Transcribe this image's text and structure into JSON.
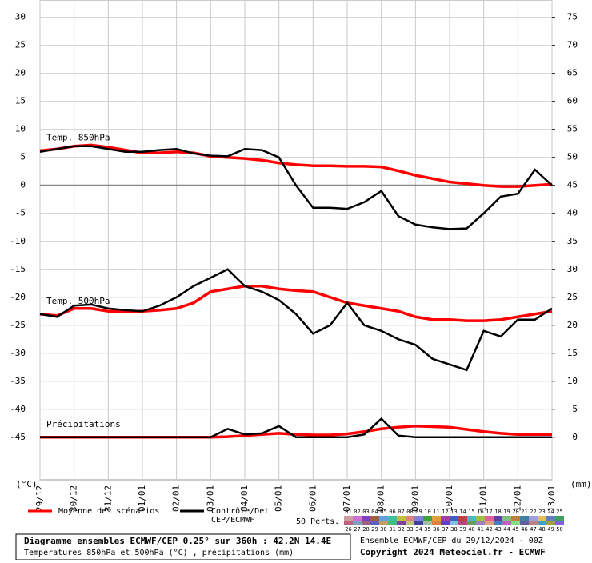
{
  "chart_data": {
    "type": "line",
    "title": "Diagramme ensembles ECMWF/CEP 0.25° sur 360h : 42.2N 14.4E",
    "subtitle": "Températures 850hPa et 500hPa (°C) , précipitations (mm)",
    "run": "Ensemble ECMWF/CEP du 29/12/2024 - 00Z",
    "copyright": "Copyright 2024 Meteociel.fr - ECMWF",
    "ylabel": "(°C)",
    "y2label": "(mm)",
    "x": [
      0,
      12,
      24,
      36,
      48,
      60,
      72,
      84,
      96,
      108,
      120,
      132,
      144,
      156,
      168,
      180,
      192,
      204,
      216,
      228,
      240,
      252,
      264,
      276,
      288,
      300,
      312,
      324,
      336,
      348,
      360
    ],
    "xlim": [
      0,
      360
    ],
    "xticks": [
      {
        "value": 0,
        "label": "29/12"
      },
      {
        "value": 24,
        "label": "30/12"
      },
      {
        "value": 48,
        "label": "31/12"
      },
      {
        "value": 72,
        "label": "01/01"
      },
      {
        "value": 96,
        "label": "02/01"
      },
      {
        "value": 120,
        "label": "03/01"
      },
      {
        "value": 144,
        "label": "04/01"
      },
      {
        "value": 168,
        "label": "05/01"
      },
      {
        "value": 192,
        "label": "06/01"
      },
      {
        "value": 216,
        "label": "07/01"
      },
      {
        "value": 240,
        "label": "08/01"
      },
      {
        "value": 264,
        "label": "09/01"
      },
      {
        "value": 288,
        "label": "10/01"
      },
      {
        "value": 312,
        "label": "11/01"
      },
      {
        "value": 336,
        "label": "12/01"
      },
      {
        "value": 360,
        "label": "13/01"
      }
    ],
    "ylim": [
      -52.6,
      33.1
    ],
    "yticks": [
      30,
      25,
      20,
      15,
      10,
      5,
      0,
      -5,
      -10,
      -15,
      -20,
      -25,
      -30,
      -35,
      -40,
      -45
    ],
    "y2lim": [
      -7.6,
      78.1
    ],
    "y2ticks": [
      75,
      70,
      65,
      60,
      55,
      50,
      45,
      40,
      35,
      30,
      25,
      20,
      15,
      10,
      5,
      0
    ],
    "grid": true,
    "legend": {
      "mean": {
        "name": "Moyenne des scénarios",
        "color": "#ff0000"
      },
      "control": {
        "name": [
          "Contrôle/Det",
          "CEP/ECMWF"
        ],
        "color": "#000000"
      }
    },
    "groups": [
      {
        "label": "Temp. 850hPa",
        "axis": "y",
        "mean": [
          6.2,
          6.5,
          7,
          7.2,
          6.8,
          6.3,
          5.8,
          5.8,
          6,
          5.8,
          5.2,
          5,
          4.8,
          4.5,
          4,
          3.7,
          3.5,
          3.5,
          3.4,
          3.4,
          3.3,
          2.6,
          1.8,
          1.2,
          0.6,
          0.3,
          0,
          -0.2,
          -0.2,
          0,
          0.2
        ],
        "control": [
          6,
          6.5,
          7,
          7,
          6.5,
          6,
          6,
          6.3,
          6.5,
          5.7,
          5.3,
          5.2,
          6.5,
          6.3,
          5,
          0,
          -4,
          -4,
          -4.2,
          -3,
          -1,
          -5.5,
          -7,
          -7.5,
          -7.8,
          -7.7,
          -5,
          -2,
          -1.5,
          2.8,
          0
        ]
      },
      {
        "label": "Temp. 500hPa",
        "axis": "y",
        "mean": [
          -23,
          -23.3,
          -22,
          -22,
          -22.5,
          -22.5,
          -22.5,
          -22.3,
          -22,
          -21,
          -19,
          -18.5,
          -18,
          -18,
          -18.5,
          -18.8,
          -19,
          -20,
          -21,
          -21.5,
          -22,
          -22.5,
          -23.5,
          -24,
          -24,
          -24.2,
          -24.2,
          -24,
          -23.5,
          -23,
          -22.5
        ],
        "control": [
          -23,
          -23.5,
          -21.5,
          -21.3,
          -22,
          -22.3,
          -22.5,
          -21.5,
          -20,
          -18,
          -16.5,
          -15,
          -18,
          -19,
          -20.5,
          -23,
          -26.5,
          -25,
          -21,
          -25,
          -26,
          -27.5,
          -28.5,
          -31,
          -32,
          -33,
          -26,
          -27,
          -24,
          -24,
          -22
        ]
      },
      {
        "label": "Précipitations",
        "axis": "y2",
        "mean": [
          0,
          0,
          0,
          0,
          0,
          0,
          0,
          0,
          0,
          0,
          0,
          0.1,
          0.3,
          0.5,
          0.7,
          0.5,
          0.4,
          0.4,
          0.6,
          1,
          1.5,
          1.8,
          2,
          1.9,
          1.8,
          1.4,
          1,
          0.7,
          0.5,
          0.5,
          0.5
        ],
        "control": [
          0,
          0,
          0,
          0,
          0,
          0,
          0,
          0,
          0,
          0,
          0,
          1.5,
          0.5,
          0.7,
          2,
          0,
          0,
          0,
          0,
          0.5,
          3.3,
          0.3,
          0,
          0,
          0,
          0,
          0,
          0,
          0,
          0,
          0
        ]
      }
    ],
    "members_label": "50 Perts.",
    "members": [
      "01",
      "02",
      "03",
      "04",
      "05",
      "06",
      "07",
      "08",
      "09",
      "10",
      "11",
      "12",
      "13",
      "14",
      "15",
      "16",
      "17",
      "18",
      "19",
      "20",
      "21",
      "22",
      "23",
      "24",
      "25",
      "26",
      "27",
      "28",
      "29",
      "30",
      "31",
      "32",
      "33",
      "34",
      "35",
      "36",
      "37",
      "38",
      "39",
      "40",
      "41",
      "42",
      "43",
      "44",
      "45",
      "46",
      "47",
      "48",
      "49",
      "50"
    ],
    "member_colors": [
      "#c8a0a0",
      "#d070d0",
      "#8040c0",
      "#a06040",
      "#60a0e0",
      "#40c0a0",
      "#c0c040",
      "#e08080",
      "#8080e0",
      "#40a040",
      "#e0a040",
      "#a040a0",
      "#4060c0",
      "#c04040",
      "#40c0c0",
      "#a0c040",
      "#e060a0",
      "#6040a0",
      "#80c080",
      "#c08040",
      "#4080a0",
      "#a0a0e0",
      "#e0c060",
      "#6080c0",
      "#40a060",
      "#c06080",
      "#80a0c0",
      "#a06080",
      "#6060c0",
      "#c0a060",
      "#40c080",
      "#8040a0",
      "#c0c080",
      "#4040a0",
      "#a0c0a0",
      "#e08040",
      "#6040c0",
      "#80c0e0",
      "#c04080",
      "#60a060",
      "#a080c0",
      "#e0a080",
      "#4080c0",
      "#c060c0",
      "#80e080",
      "#6060a0",
      "#c08080",
      "#40a0c0",
      "#a0a040",
      "#8060e0"
    ]
  }
}
